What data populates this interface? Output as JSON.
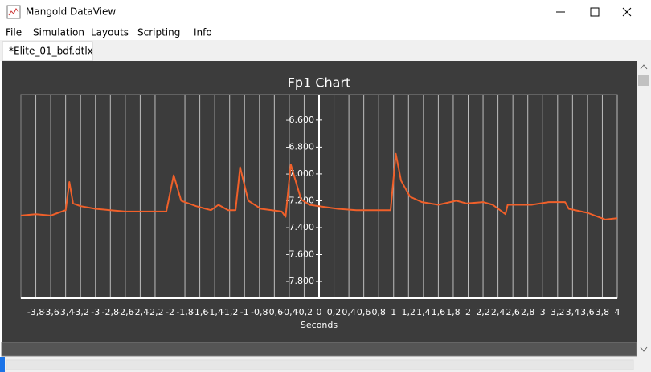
{
  "window": {
    "title": "Mangold DataView"
  },
  "menu": [
    "File",
    "Simulation",
    "Layouts",
    "Scripting",
    "Info"
  ],
  "tabs": [
    "*Elite_01_bdf.dtlx"
  ],
  "chart_data": {
    "type": "line",
    "title": "Fp1 Chart",
    "x_label": "Seconds",
    "x": [
      -4.0,
      -3.8,
      -3.6,
      -3.5,
      -3.4,
      -3.35,
      -3.3,
      -3.2,
      -3.0,
      -2.8,
      -2.6,
      -2.4,
      -2.2,
      -2.05,
      -1.95,
      -1.85,
      -1.65,
      -1.45,
      -1.35,
      -1.22,
      -1.12,
      -1.06,
      -0.95,
      -0.78,
      -0.5,
      -0.45,
      -0.38,
      -0.3,
      -0.24,
      -0.13,
      0,
      0.25,
      0.5,
      0.96,
      1.03,
      1.1,
      1.22,
      1.38,
      1.6,
      1.84,
      1.98,
      2.2,
      2.33,
      2.5,
      2.53,
      2.85,
      3.08,
      3.3,
      3.35,
      3.6,
      3.84,
      4.0
    ],
    "series": [
      {
        "name": "Fp1",
        "color": "#f0602a",
        "values": [
          -7.31,
          -7.3,
          -7.31,
          -7.29,
          -7.27,
          -7.06,
          -7.22,
          -7.24,
          -7.26,
          -7.27,
          -7.28,
          -7.28,
          -7.28,
          -7.28,
          -7.01,
          -7.2,
          -7.24,
          -7.27,
          -7.23,
          -7.27,
          -7.27,
          -6.95,
          -7.2,
          -7.26,
          -7.28,
          -7.32,
          -6.93,
          -7.08,
          -7.19,
          -7.23,
          -7.24,
          -7.26,
          -7.27,
          -7.27,
          -6.85,
          -7.05,
          -7.17,
          -7.21,
          -7.23,
          -7.2,
          -7.22,
          -7.21,
          -7.23,
          -7.3,
          -7.23,
          -7.23,
          -7.21,
          -7.21,
          -7.26,
          -7.29,
          -7.34,
          -7.33
        ]
      }
    ],
    "xlim": [
      -4,
      4
    ],
    "ylim": [
      -7.925,
      -6.41
    ],
    "xticks": [
      {
        "value": -3.8,
        "label": "-3,8"
      },
      {
        "value": -3.6,
        "label": "-3,6"
      },
      {
        "value": -3.4,
        "label": "-3,4"
      },
      {
        "value": -3.2,
        "label": "-3,2"
      },
      -3,
      {
        "value": -2.8,
        "label": "-2,8"
      },
      {
        "value": -2.6,
        "label": "-2,6"
      },
      {
        "value": -2.4,
        "label": "-2,4"
      },
      {
        "value": -2.2,
        "label": "-2,2"
      },
      -2,
      {
        "value": -1.8,
        "label": "-1,8"
      },
      {
        "value": -1.6,
        "label": "-1,6"
      },
      {
        "value": -1.4,
        "label": "-1,4"
      },
      {
        "value": -1.2,
        "label": "-1,2"
      },
      -1,
      {
        "value": -0.8,
        "label": "-0,8"
      },
      {
        "value": -0.6,
        "label": "-0,6"
      },
      {
        "value": -0.4,
        "label": "-0,4"
      },
      {
        "value": -0.2,
        "label": "-0,2"
      },
      0,
      {
        "value": 0.2,
        "label": "0,2"
      },
      {
        "value": 0.4,
        "label": "0,4"
      },
      {
        "value": 0.6,
        "label": "0,6"
      },
      {
        "value": 0.8,
        "label": "0,8"
      },
      1,
      {
        "value": 1.2,
        "label": "1,2"
      },
      {
        "value": 1.4,
        "label": "1,4"
      },
      {
        "value": 1.6,
        "label": "1,6"
      },
      {
        "value": 1.8,
        "label": "1,8"
      },
      2,
      {
        "value": 2.2,
        "label": "2,2"
      },
      {
        "value": 2.4,
        "label": "2,4"
      },
      {
        "value": 2.6,
        "label": "2,6"
      },
      {
        "value": 2.8,
        "label": "2,8"
      },
      3,
      {
        "value": 3.2,
        "label": "3,2"
      },
      {
        "value": 3.4,
        "label": "3,4"
      },
      {
        "value": 3.6,
        "label": "3,6"
      },
      {
        "value": 3.8,
        "label": "3,8"
      },
      4
    ],
    "yticks": [
      {
        "value": -6.6,
        "label": "-6.600"
      },
      {
        "value": -6.8,
        "label": "-6.800"
      },
      {
        "value": -7.0,
        "label": "-7.000"
      },
      {
        "value": -7.2,
        "label": "-7.200"
      },
      {
        "value": -7.4,
        "label": "-7.400"
      },
      {
        "value": -7.6,
        "label": "-7.600"
      },
      {
        "value": -7.8,
        "label": "-7.800"
      }
    ],
    "grid": true
  }
}
